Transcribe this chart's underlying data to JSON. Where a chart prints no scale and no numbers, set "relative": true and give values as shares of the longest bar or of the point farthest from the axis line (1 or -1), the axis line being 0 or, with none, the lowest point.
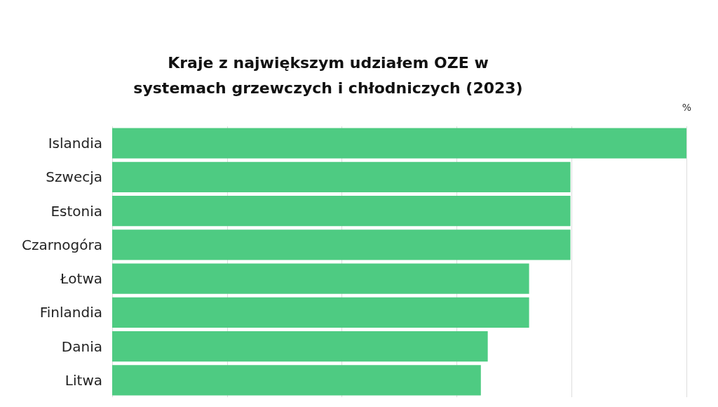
{
  "chart_data": {
    "type": "bar",
    "orientation": "horizontal",
    "relative": true,
    "title": "Kraje z największym udziałem OZE w\nsystemach grzewczych i chłodniczych (2023)",
    "xlabel": "%",
    "categories": [
      "Islandia",
      "Szwecja",
      "Estonia",
      "Czarnogóra",
      "Łotwa",
      "Finlandia",
      "Dania",
      "Litwa"
    ],
    "values": [
      1,
      0.798,
      0.798,
      0.798,
      0.726,
      0.726,
      0.654,
      0.642
    ],
    "color": "#4ecb82",
    "grid": "x"
  }
}
